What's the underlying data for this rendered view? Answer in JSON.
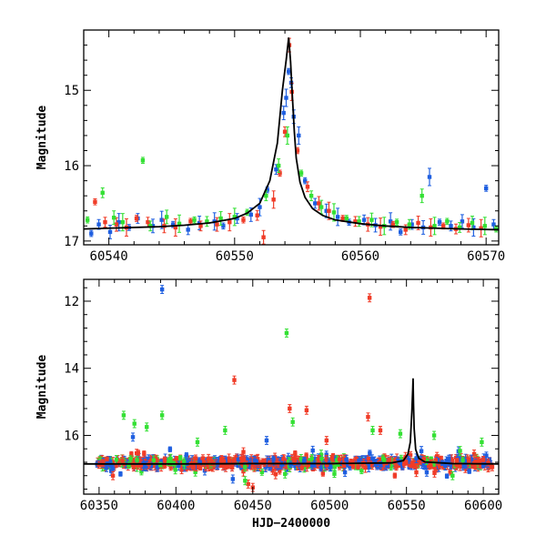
{
  "chart_data": [
    {
      "type": "scatter",
      "panel": "top",
      "xlabel": "",
      "ylabel": "Magnitude",
      "xlim": [
        60538,
        60571
      ],
      "ylim": [
        17.05,
        14.2
      ],
      "y_inverted": true,
      "x_ticks": [
        60540,
        60550,
        60560,
        60570
      ],
      "y_ticks": [
        15,
        16,
        17
      ],
      "colors": {
        "blue": "#1f5fe0",
        "red": "#f03c28",
        "green": "#34e034",
        "model": "#000000"
      },
      "model_curve": {
        "name": "",
        "x": [
          60538,
          60540,
          60542,
          60544,
          60546,
          60548,
          60550,
          60551,
          60552,
          60552.8,
          60553.4,
          60553.8,
          60554.1,
          60554.3,
          60554.45,
          60554.6,
          60554.75,
          60554.9,
          60555.2,
          60555.6,
          60556.2,
          60557,
          60558,
          60560,
          60562,
          60564,
          60566,
          60568,
          60571
        ],
        "y": [
          16.84,
          16.83,
          16.82,
          16.81,
          16.79,
          16.76,
          16.7,
          16.63,
          16.5,
          16.2,
          15.7,
          15.0,
          14.6,
          14.3,
          14.62,
          15.1,
          15.55,
          15.9,
          16.22,
          16.42,
          16.57,
          16.66,
          16.72,
          16.77,
          16.8,
          16.82,
          16.83,
          16.84,
          16.85
        ]
      },
      "series": [
        {
          "color": "blue",
          "x": [
            60538.6,
            60539.2,
            60540.1,
            60540.8,
            60541.6,
            60542.3,
            60543.5,
            60544.2,
            60545.1,
            60546.3,
            60547.2,
            60548.4,
            60549.1,
            60550.2,
            60551.3,
            60552.0,
            60552.6,
            60553.3,
            60553.9,
            60554.1,
            60554.3,
            60554.5,
            60554.7,
            60555.1,
            60555.6,
            60556.4,
            60557.3,
            60558.2,
            60559.1,
            60560.3,
            60561.2,
            60562.4,
            60563.2,
            60564.1,
            60565.0,
            60565.5,
            60566.3,
            60567.2,
            60568.1,
            60569.0,
            60570.0,
            60570.6
          ],
          "y": [
            16.9,
            16.78,
            16.88,
            16.75,
            16.82,
            16.7,
            16.8,
            16.72,
            16.78,
            16.85,
            16.76,
            16.74,
            16.8,
            16.7,
            16.65,
            16.55,
            16.32,
            16.05,
            15.3,
            15.1,
            14.75,
            14.9,
            15.35,
            15.6,
            16.2,
            16.5,
            16.6,
            16.68,
            16.75,
            16.72,
            16.79,
            16.74,
            16.88,
            16.78,
            16.82,
            16.15,
            16.75,
            16.8,
            16.74,
            16.82,
            16.3,
            16.78
          ]
        },
        {
          "color": "red",
          "x": [
            60538.9,
            60539.7,
            60540.6,
            60541.4,
            60542.2,
            60543.1,
            60544.4,
            60545.3,
            60546.5,
            60547.3,
            60548.6,
            60549.6,
            60550.7,
            60551.8,
            60552.3,
            60553.1,
            60553.6,
            60554.0,
            60554.35,
            60554.55,
            60555.0,
            60555.8,
            60556.7,
            60557.5,
            60558.6,
            60559.6,
            60560.6,
            60561.6,
            60562.6,
            60563.6,
            60564.6,
            60565.6,
            60566.6,
            60567.6,
            60568.6,
            60569.6
          ],
          "y": [
            16.48,
            16.75,
            16.78,
            16.82,
            16.7,
            16.75,
            16.8,
            16.82,
            16.74,
            16.8,
            16.78,
            16.75,
            16.72,
            16.66,
            16.95,
            16.45,
            16.1,
            15.55,
            14.4,
            15.02,
            15.8,
            16.28,
            16.5,
            16.6,
            16.7,
            16.74,
            16.78,
            16.81,
            16.78,
            16.85,
            16.76,
            16.82,
            16.8,
            16.84,
            16.79,
            16.83
          ]
        },
        {
          "color": "green",
          "x": [
            60538.3,
            60539.5,
            60540.4,
            60541.1,
            60542.7,
            60543.3,
            60544.6,
            60545.6,
            60546.8,
            60547.8,
            60548.9,
            60550.0,
            60551.0,
            60552.5,
            60553.5,
            60554.2,
            60555.3,
            60556.1,
            60556.9,
            60557.9,
            60558.9,
            60559.9,
            60560.9,
            60561.9,
            60562.9,
            60563.9,
            60564.9,
            60565.9,
            60566.9,
            60567.9,
            60568.9,
            60569.9,
            60570.8
          ],
          "y": [
            16.72,
            16.36,
            16.69,
            16.75,
            15.93,
            16.8,
            16.68,
            16.77,
            16.72,
            16.74,
            16.7,
            16.68,
            16.62,
            16.4,
            16.0,
            15.6,
            16.1,
            16.4,
            16.55,
            16.62,
            16.7,
            16.74,
            16.72,
            16.8,
            16.75,
            16.78,
            16.4,
            16.8,
            16.74,
            16.82,
            16.76,
            16.8,
            16.84
          ]
        }
      ]
    },
    {
      "type": "scatter",
      "panel": "bottom",
      "xlabel": "HJD−2400000",
      "ylabel": "Magnitude",
      "xlim": [
        60340,
        60610
      ],
      "ylim": [
        17.75,
        11.35
      ],
      "y_inverted": true,
      "x_ticks": [
        60350,
        60400,
        60450,
        60500,
        60550,
        60600
      ],
      "y_ticks": [
        12,
        14,
        16
      ],
      "colors": {
        "blue": "#1f5fe0",
        "red": "#f03c28",
        "green": "#34e034",
        "model": "#000000"
      },
      "model_curve": {
        "name": "",
        "x": [
          60340,
          60400,
          60450,
          60500,
          60540,
          60548,
          60551,
          60552.5,
          60553.5,
          60554.1,
          60554.3,
          60554.6,
          60555,
          60556,
          60558,
          60562,
          60580,
          60610
        ],
        "y": [
          16.85,
          16.85,
          16.84,
          16.84,
          16.82,
          16.75,
          16.55,
          16.2,
          15.3,
          14.6,
          14.3,
          15.1,
          15.8,
          16.42,
          16.68,
          16.79,
          16.84,
          16.85
        ]
      },
      "outliers": [
        {
          "color": "blue",
          "x": 60391,
          "y": 11.65
        },
        {
          "color": "red",
          "x": 60526,
          "y": 11.9
        },
        {
          "color": "green",
          "x": 60472,
          "y": 12.95
        },
        {
          "color": "red",
          "x": 60438,
          "y": 14.35
        },
        {
          "color": "red",
          "x": 60474,
          "y": 15.2
        },
        {
          "color": "red",
          "x": 60485,
          "y": 15.25
        },
        {
          "color": "green",
          "x": 60366,
          "y": 15.4
        },
        {
          "color": "green",
          "x": 60391,
          "y": 15.4
        },
        {
          "color": "red",
          "x": 60525,
          "y": 15.45
        },
        {
          "color": "green",
          "x": 60373,
          "y": 15.65
        },
        {
          "color": "green",
          "x": 60476,
          "y": 15.6
        },
        {
          "color": "green",
          "x": 60381,
          "y": 15.75
        },
        {
          "color": "green",
          "x": 60432,
          "y": 15.85
        },
        {
          "color": "red",
          "x": 60533,
          "y": 15.85
        },
        {
          "color": "green",
          "x": 60546,
          "y": 15.95
        },
        {
          "color": "green",
          "x": 60528,
          "y": 15.85
        },
        {
          "color": "blue",
          "x": 60372,
          "y": 16.05
        },
        {
          "color": "green",
          "x": 60568,
          "y": 16.0
        },
        {
          "color": "green",
          "x": 60414,
          "y": 16.2
        },
        {
          "color": "blue",
          "x": 60459,
          "y": 16.15
        },
        {
          "color": "red",
          "x": 60498,
          "y": 16.15
        },
        {
          "color": "green",
          "x": 60599,
          "y": 16.2
        },
        {
          "color": "red",
          "x": 60359,
          "y": 17.2
        },
        {
          "color": "red",
          "x": 60447,
          "y": 17.45
        },
        {
          "color": "red",
          "x": 60450,
          "y": 17.55
        },
        {
          "color": "green",
          "x": 60580,
          "y": 17.2
        },
        {
          "color": "blue",
          "x": 60510,
          "y": 17.1
        },
        {
          "color": "green",
          "x": 60471,
          "y": 17.15
        },
        {
          "color": "blue",
          "x": 60437,
          "y": 17.3
        },
        {
          "color": "green",
          "x": 60445,
          "y": 17.35
        }
      ]
    }
  ]
}
